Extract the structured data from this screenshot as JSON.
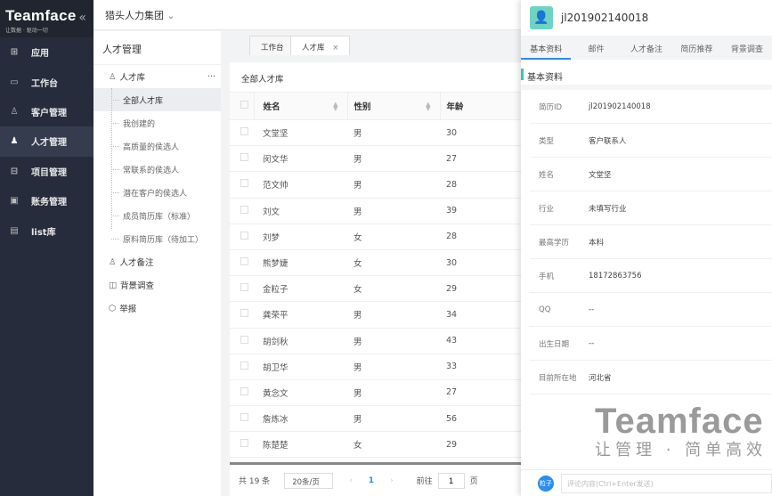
{
  "sidebar": {
    "brand": "Teamface",
    "slogan": "让数据 · 驱动一切",
    "items": [
      {
        "label": "应用",
        "icon": "apps-icon"
      },
      {
        "label": "工作台",
        "icon": "monitor-icon"
      },
      {
        "label": "客户管理",
        "icon": "customers-icon"
      },
      {
        "label": "人才管理",
        "icon": "talent-icon",
        "active": true
      },
      {
        "label": "项目管理",
        "icon": "project-icon"
      },
      {
        "label": "账务管理",
        "icon": "finance-icon"
      },
      {
        "label": "list库",
        "icon": "list-icon"
      }
    ]
  },
  "topbar": {
    "org": "猎头人力集团"
  },
  "subnav": {
    "title": "人才管理",
    "groups": [
      {
        "label": "人才库",
        "children": [
          "全部人才库",
          "我创建的",
          "高质量的侯选人",
          "常联系的侯选人",
          "潜在客户的侯选人",
          "成员简历库（标准）",
          "原料简历库（待加工）"
        ]
      },
      {
        "label": "人才备注"
      },
      {
        "label": "背景调查"
      },
      {
        "label": "举报"
      }
    ]
  },
  "tabs": [
    {
      "label": "工作台"
    },
    {
      "label": "人才库",
      "active": true
    }
  ],
  "table": {
    "title": "全部人才库",
    "columns": [
      "姓名",
      "性别",
      "年龄"
    ],
    "rows": [
      [
        "文堂坚",
        "男",
        "30"
      ],
      [
        "闵文华",
        "男",
        "27"
      ],
      [
        "范文帅",
        "男",
        "28"
      ],
      [
        "刘文",
        "男",
        "39"
      ],
      [
        "刘梦",
        "女",
        "28"
      ],
      [
        "熊梦婕",
        "女",
        "30"
      ],
      [
        "金粒子",
        "女",
        "29"
      ],
      [
        "龚荣平",
        "男",
        "34"
      ],
      [
        "胡剑秋",
        "男",
        "43"
      ],
      [
        "胡卫华",
        "男",
        "33"
      ],
      [
        "黄念文",
        "男",
        "27"
      ],
      [
        "詹炼冰",
        "男",
        "56"
      ],
      [
        "陈楚楚",
        "女",
        "29"
      ]
    ]
  },
  "pager": {
    "total": "共 19 条",
    "page_size": "20条/页",
    "current": "1",
    "goto_label": "前往",
    "goto_value": "1",
    "page_suffix": "页"
  },
  "detail": {
    "id": "jl201902140018",
    "tabs": [
      "基本资料",
      "邮件",
      "人才备注",
      "简历推荐",
      "背景调查"
    ],
    "section": "基本资料",
    "fields": [
      {
        "label": "简历ID",
        "value": "jl201902140018"
      },
      {
        "label": "类型",
        "value": "客户联系人"
      },
      {
        "label": "姓名",
        "value": "文堂坚"
      },
      {
        "label": "行业",
        "value": "未填写行业"
      },
      {
        "label": "最高学历",
        "value": "本科"
      },
      {
        "label": "手机",
        "value": "18172863756"
      },
      {
        "label": "QQ",
        "value": "--"
      },
      {
        "label": "出生日期",
        "value": "--"
      },
      {
        "label": "目前所在地",
        "value": "河北省"
      }
    ],
    "comment_avatar": "粒子",
    "comment_placeholder": "评论内容(Ctrl+Enter发送)"
  },
  "watermark": {
    "brand": "Teamface",
    "slogan": "让管理 · 简单高效"
  },
  "colors": {
    "sidebar": "#262c3b",
    "accent": "#2d8cf0",
    "teal": "#3fc1b0"
  }
}
